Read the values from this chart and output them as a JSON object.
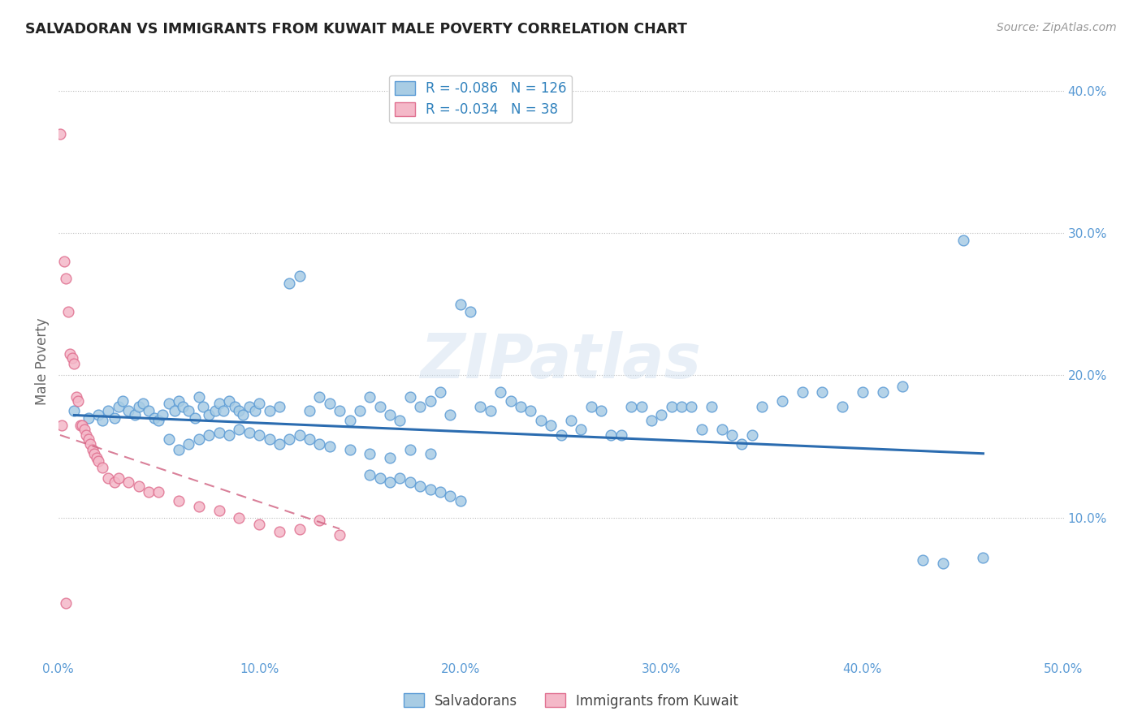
{
  "title": "SALVADORAN VS IMMIGRANTS FROM KUWAIT MALE POVERTY CORRELATION CHART",
  "source": "Source: ZipAtlas.com",
  "ylabel": "Male Poverty",
  "xlim": [
    0.0,
    0.5
  ],
  "ylim": [
    0.0,
    0.42
  ],
  "xticks": [
    0.0,
    0.1,
    0.2,
    0.3,
    0.4,
    0.5
  ],
  "xticklabels": [
    "0.0%",
    "10.0%",
    "20.0%",
    "30.0%",
    "40.0%",
    "50.0%"
  ],
  "yticks": [
    0.1,
    0.2,
    0.3,
    0.4
  ],
  "yticklabels": [
    "10.0%",
    "20.0%",
    "30.0%",
    "40.0%"
  ],
  "legend_R_blue": "-0.086",
  "legend_N_blue": "126",
  "legend_R_pink": "-0.034",
  "legend_N_pink": "38",
  "blue_color": "#a8cce4",
  "blue_edge_color": "#5b9bd5",
  "pink_color": "#f4b8c8",
  "pink_edge_color": "#e07090",
  "blue_line_color": "#2b6cb0",
  "pink_line_color": "#d06080",
  "watermark": "ZIPatlas",
  "salvadorans_x": [
    0.008,
    0.015,
    0.02,
    0.022,
    0.025,
    0.028,
    0.03,
    0.032,
    0.035,
    0.038,
    0.04,
    0.042,
    0.045,
    0.048,
    0.05,
    0.052,
    0.055,
    0.058,
    0.06,
    0.062,
    0.065,
    0.068,
    0.07,
    0.072,
    0.075,
    0.078,
    0.08,
    0.082,
    0.085,
    0.088,
    0.09,
    0.092,
    0.095,
    0.098,
    0.1,
    0.105,
    0.11,
    0.115,
    0.12,
    0.125,
    0.13,
    0.135,
    0.14,
    0.145,
    0.15,
    0.155,
    0.16,
    0.165,
    0.17,
    0.175,
    0.18,
    0.185,
    0.19,
    0.195,
    0.2,
    0.205,
    0.21,
    0.215,
    0.22,
    0.225,
    0.23,
    0.235,
    0.24,
    0.245,
    0.25,
    0.255,
    0.26,
    0.265,
    0.27,
    0.275,
    0.28,
    0.285,
    0.29,
    0.295,
    0.3,
    0.305,
    0.31,
    0.315,
    0.32,
    0.325,
    0.33,
    0.335,
    0.34,
    0.345,
    0.35,
    0.36,
    0.37,
    0.38,
    0.39,
    0.4,
    0.41,
    0.42,
    0.43,
    0.44,
    0.45,
    0.46,
    0.055,
    0.06,
    0.065,
    0.07,
    0.075,
    0.08,
    0.085,
    0.09,
    0.095,
    0.1,
    0.105,
    0.11,
    0.115,
    0.12,
    0.125,
    0.13,
    0.135,
    0.145,
    0.155,
    0.165,
    0.175,
    0.185,
    0.155,
    0.16,
    0.165,
    0.17,
    0.175,
    0.18,
    0.185,
    0.19,
    0.195,
    0.2
  ],
  "salvadorans_y": [
    0.175,
    0.17,
    0.172,
    0.168,
    0.175,
    0.17,
    0.178,
    0.182,
    0.175,
    0.172,
    0.178,
    0.18,
    0.175,
    0.17,
    0.168,
    0.172,
    0.18,
    0.175,
    0.182,
    0.178,
    0.175,
    0.17,
    0.185,
    0.178,
    0.172,
    0.175,
    0.18,
    0.175,
    0.182,
    0.178,
    0.175,
    0.172,
    0.178,
    0.175,
    0.18,
    0.175,
    0.178,
    0.265,
    0.27,
    0.175,
    0.185,
    0.18,
    0.175,
    0.168,
    0.175,
    0.185,
    0.178,
    0.172,
    0.168,
    0.185,
    0.178,
    0.182,
    0.188,
    0.172,
    0.25,
    0.245,
    0.178,
    0.175,
    0.188,
    0.182,
    0.178,
    0.175,
    0.168,
    0.165,
    0.158,
    0.168,
    0.162,
    0.178,
    0.175,
    0.158,
    0.158,
    0.178,
    0.178,
    0.168,
    0.172,
    0.178,
    0.178,
    0.178,
    0.162,
    0.178,
    0.162,
    0.158,
    0.152,
    0.158,
    0.178,
    0.182,
    0.188,
    0.188,
    0.178,
    0.188,
    0.188,
    0.192,
    0.07,
    0.068,
    0.295,
    0.072,
    0.155,
    0.148,
    0.152,
    0.155,
    0.158,
    0.16,
    0.158,
    0.162,
    0.16,
    0.158,
    0.155,
    0.152,
    0.155,
    0.158,
    0.155,
    0.152,
    0.15,
    0.148,
    0.145,
    0.142,
    0.148,
    0.145,
    0.13,
    0.128,
    0.125,
    0.128,
    0.125,
    0.122,
    0.12,
    0.118,
    0.115,
    0.112
  ],
  "kuwait_x": [
    0.001,
    0.002,
    0.003,
    0.004,
    0.005,
    0.006,
    0.007,
    0.008,
    0.009,
    0.01,
    0.011,
    0.012,
    0.013,
    0.014,
    0.015,
    0.016,
    0.017,
    0.018,
    0.019,
    0.02,
    0.022,
    0.025,
    0.028,
    0.03,
    0.035,
    0.04,
    0.045,
    0.05,
    0.06,
    0.07,
    0.08,
    0.09,
    0.1,
    0.11,
    0.12,
    0.13,
    0.14,
    0.004
  ],
  "kuwait_y": [
    0.37,
    0.165,
    0.28,
    0.268,
    0.245,
    0.215,
    0.212,
    0.208,
    0.185,
    0.182,
    0.165,
    0.165,
    0.162,
    0.158,
    0.155,
    0.152,
    0.148,
    0.145,
    0.142,
    0.14,
    0.135,
    0.128,
    0.125,
    0.128,
    0.125,
    0.122,
    0.118,
    0.118,
    0.112,
    0.108,
    0.105,
    0.1,
    0.095,
    0.09,
    0.092,
    0.098,
    0.088,
    0.04
  ],
  "blue_trendline_x": [
    0.008,
    0.46
  ],
  "blue_trendline_y": [
    0.172,
    0.145
  ],
  "pink_trendline_x": [
    0.001,
    0.14
  ],
  "pink_trendline_y": [
    0.158,
    0.092
  ]
}
